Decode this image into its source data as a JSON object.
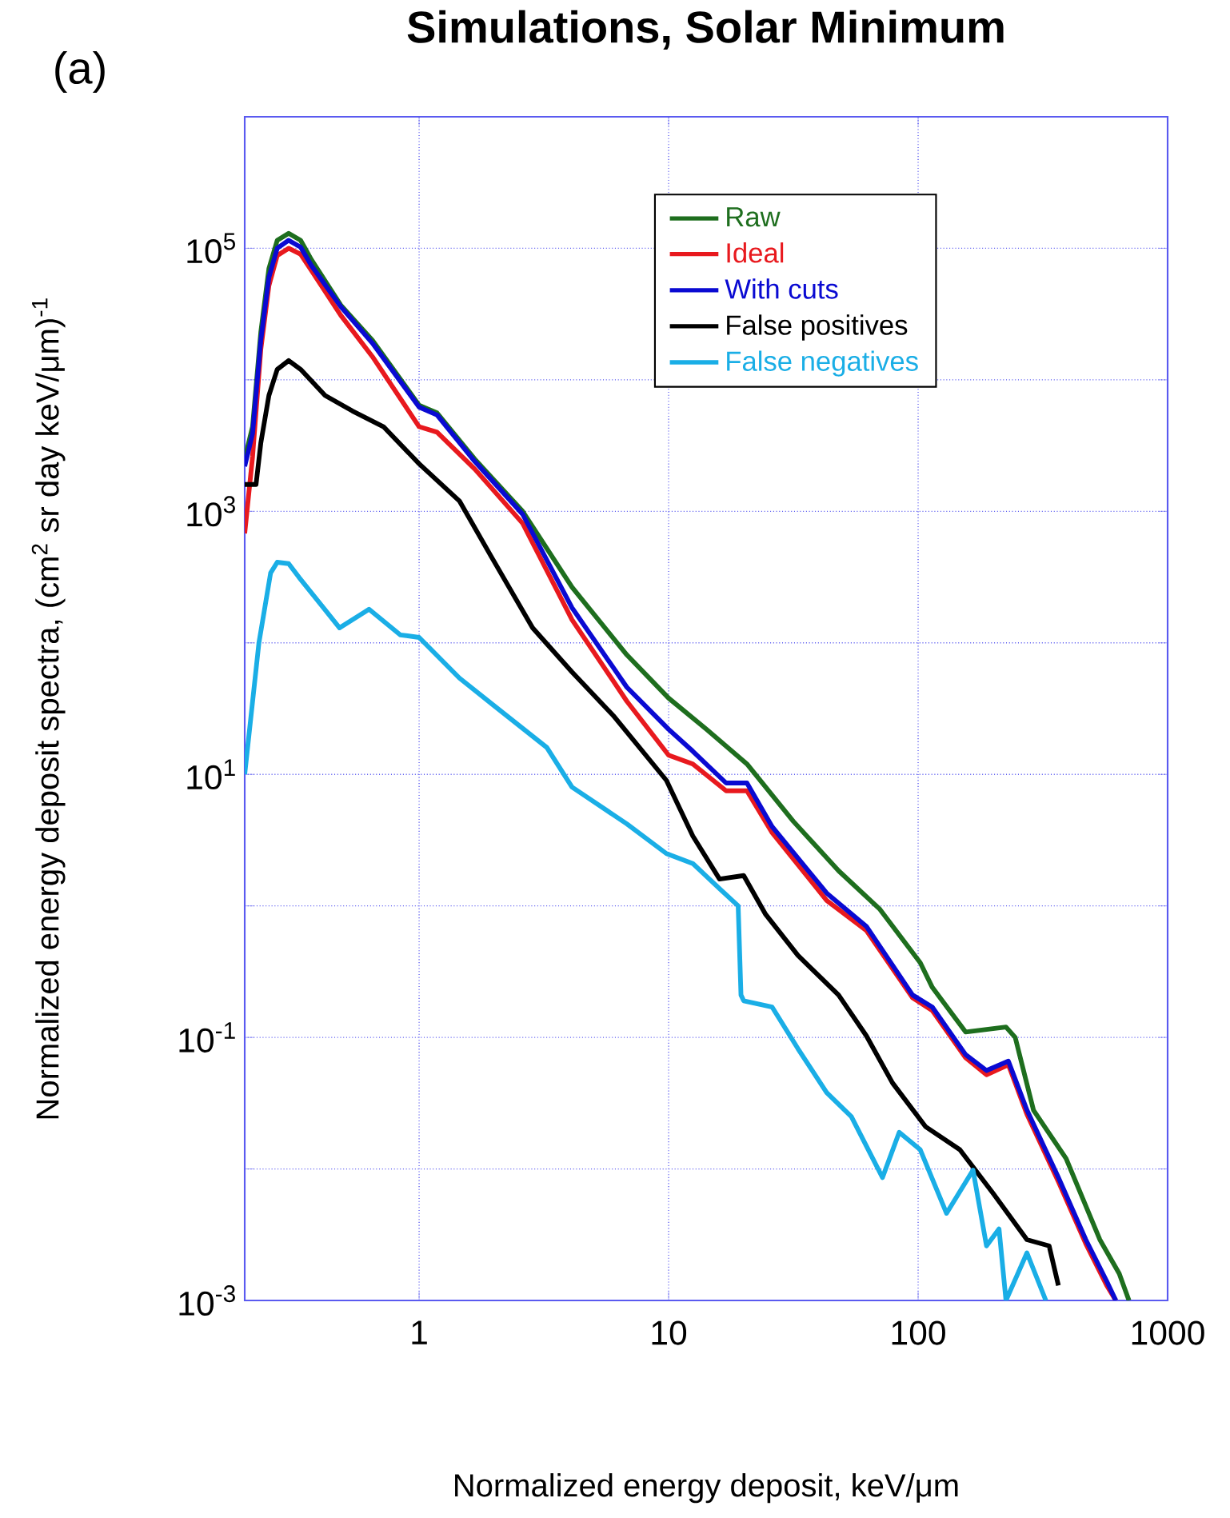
{
  "chart_data": {
    "type": "line",
    "title": "Simulations, Solar Minimum",
    "xlabel": "Normalized energy deposit, keV/μm",
    "ylabel": "Normalized energy deposit spectra, (cm$^{2}$ sr day keV/μm)$^{-1}$",
    "annotations": [
      "(a)"
    ],
    "log": "xy",
    "grid": true,
    "legend": "top right",
    "marker": "none",
    "line_style": "solid",
    "xlim": [
      0.2,
      1000
    ],
    "ylim": [
      0.001,
      1000000
    ],
    "xticks": [
      1,
      10,
      100,
      1000
    ],
    "yticks": [
      {
        "value": 0.001,
        "label": "10$^{-3}$"
      },
      {
        "value": 0.01,
        "label": null
      },
      {
        "value": 0.1,
        "label": "10$^{-1}$"
      },
      {
        "value": 1,
        "label": null
      },
      {
        "value": 10,
        "label": "10$^{1}$"
      },
      {
        "value": 100,
        "label": null
      },
      {
        "value": 1000,
        "label": "10$^{3}$"
      },
      {
        "value": 10000,
        "label": null
      },
      {
        "value": 100000,
        "label": "10$^{5}$"
      },
      {
        "value": 1000000,
        "label": null
      }
    ],
    "series": [
      {
        "name": "Raw",
        "color": "#1e6e1e",
        "x": [
          0.2,
          0.215,
          0.232,
          0.25,
          0.27,
          0.3,
          0.335,
          0.37,
          0.485,
          0.65,
          1,
          1.18,
          1.67,
          2.6,
          4.1,
          6.8,
          10,
          14.2,
          20.6,
          31.6,
          48,
          70,
          102,
          114,
          155,
          225,
          245,
          290,
          392,
          535,
          640,
          700
        ],
        "values": [
          2500,
          4400,
          23000,
          70000,
          115000,
          130000,
          115000,
          82000,
          37000,
          20000,
          6400,
          5600,
          2500,
          1000,
          265,
          81,
          38,
          22,
          12,
          4.4,
          1.85,
          0.95,
          0.37,
          0.24,
          0.11,
          0.12,
          0.1,
          0.028,
          0.012,
          0.0029,
          0.0016,
          0.001
        ]
      },
      {
        "name": "Ideal",
        "color": "#e8191e",
        "x": [
          0.2,
          0.215,
          0.232,
          0.25,
          0.27,
          0.3,
          0.335,
          0.37,
          0.485,
          0.65,
          1,
          1.18,
          1.67,
          2.6,
          4.1,
          6.8,
          10,
          12.5,
          17,
          20.6,
          26,
          43,
          62,
          95,
          114,
          155,
          188,
          230,
          273,
          365,
          470,
          570,
          620
        ],
        "values": [
          680,
          2600,
          17000,
          52000,
          88000,
          100000,
          90000,
          68000,
          31000,
          15000,
          4400,
          4000,
          2100,
          810,
          150,
          36,
          14,
          12,
          7.5,
          7.5,
          3.6,
          1.1,
          0.65,
          0.2,
          0.16,
          0.07,
          0.052,
          0.062,
          0.026,
          0.008,
          0.0027,
          0.0013,
          0.001
        ]
      },
      {
        "name": "With cuts",
        "color": "#0a0ad2",
        "x": [
          0.2,
          0.215,
          0.232,
          0.25,
          0.27,
          0.3,
          0.335,
          0.37,
          0.485,
          0.65,
          1,
          1.18,
          1.67,
          2.6,
          4.1,
          6.8,
          10,
          12.5,
          17,
          20.6,
          26,
          43,
          62,
          95,
          114,
          155,
          188,
          230,
          273,
          365,
          470,
          570,
          620
        ],
        "values": [
          2200,
          3900,
          20000,
          60000,
          100000,
          115000,
          102000,
          74000,
          36000,
          19000,
          6200,
          5400,
          2400,
          950,
          185,
          46,
          22,
          15,
          8.6,
          8.6,
          4,
          1.25,
          0.7,
          0.21,
          0.17,
          0.074,
          0.056,
          0.066,
          0.028,
          0.0086,
          0.0029,
          0.0014,
          0.001
        ]
      },
      {
        "name": "False positives",
        "color": "#000000",
        "x": [
          0.2,
          0.222,
          0.232,
          0.25,
          0.27,
          0.3,
          0.335,
          0.42,
          0.54,
          0.72,
          1,
          1.45,
          1.95,
          2.85,
          4.1,
          6,
          9.8,
          12.5,
          16,
          20,
          24.5,
          33,
          48,
          62,
          79,
          107,
          147,
          200,
          273,
          335,
          365
        ],
        "values": [
          1600,
          1600,
          3300,
          7600,
          12000,
          14000,
          12000,
          7600,
          5800,
          4400,
          2300,
          1200,
          450,
          130,
          60,
          28,
          9,
          3.4,
          1.6,
          1.7,
          0.86,
          0.42,
          0.21,
          0.103,
          0.045,
          0.021,
          0.014,
          0.0065,
          0.0029,
          0.0026,
          0.0013
        ]
      },
      {
        "name": "False negatives",
        "color": "#1aaee6",
        "x": [
          0.2,
          0.228,
          0.254,
          0.27,
          0.3,
          0.33,
          0.48,
          0.63,
          0.84,
          1,
          1.45,
          1.97,
          3.25,
          4.1,
          6.8,
          9.8,
          12.5,
          16,
          19,
          19.5,
          20,
          26,
          33,
          43,
          54,
          72,
          84,
          102,
          130,
          166,
          188,
          211,
          225,
          273,
          325
        ],
        "values": [
          10,
          100,
          340,
          410,
          400,
          315,
          130,
          180,
          115,
          110,
          54,
          34,
          16,
          8,
          4.2,
          2.5,
          2.1,
          1.35,
          1.0,
          0.21,
          0.19,
          0.17,
          0.082,
          0.038,
          0.025,
          0.0086,
          0.019,
          0.014,
          0.0046,
          0.0098,
          0.0026,
          0.0035,
          0.001,
          0.0023,
          0.001
        ]
      }
    ]
  }
}
